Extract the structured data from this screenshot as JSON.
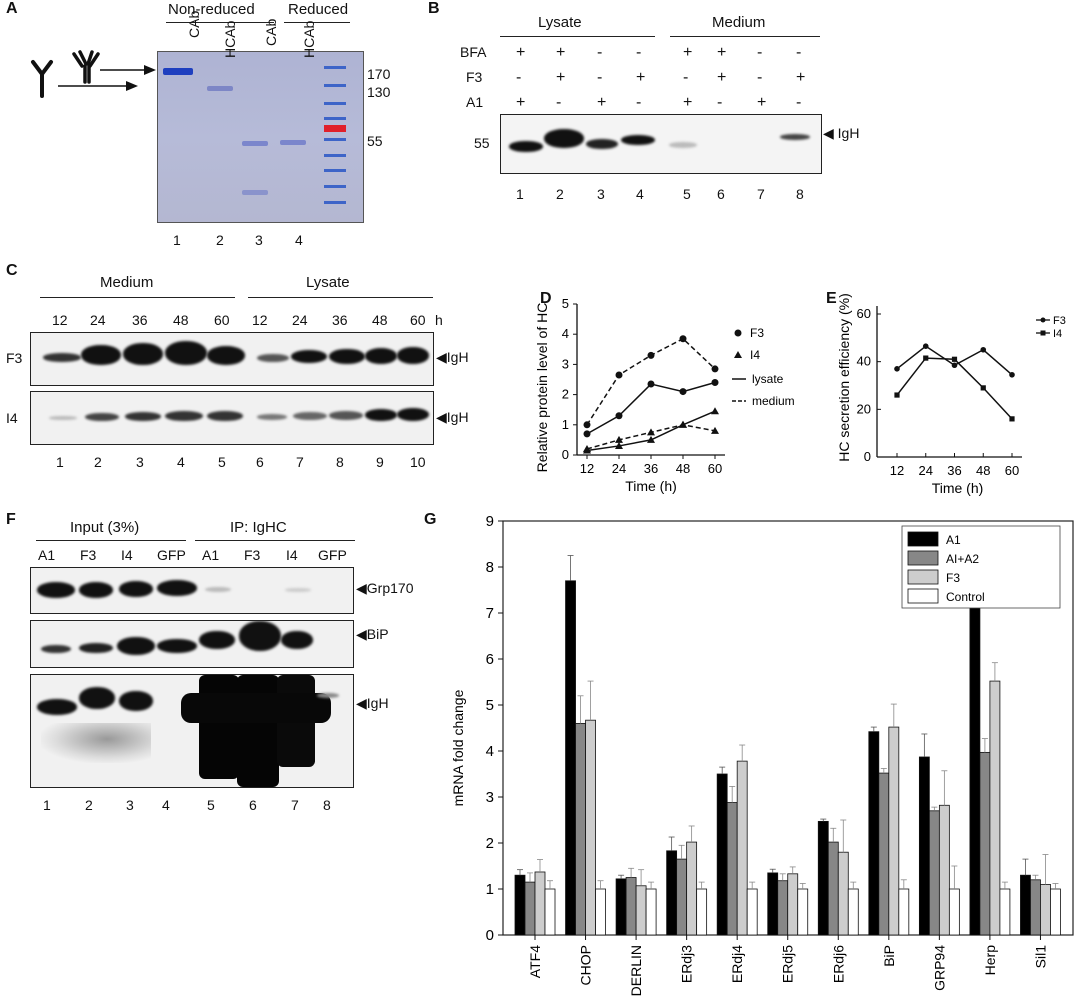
{
  "panels": {
    "A": {
      "label": "A",
      "headers": [
        "Non-reduced",
        "Reduced"
      ],
      "lanes": [
        "CAb",
        "HCAb",
        "CAb",
        "HCAb"
      ],
      "markers": [
        "170",
        "130",
        "55"
      ],
      "lane_numbers": [
        "1",
        "2",
        "3",
        "4"
      ]
    },
    "B": {
      "label": "B",
      "groups": [
        "Lysate",
        "Medium"
      ],
      "row_labels": [
        "BFA",
        "F3",
        "A1"
      ],
      "rows": {
        "BFA": [
          "+",
          "+",
          "-",
          "-",
          "+",
          "+",
          "-",
          "-"
        ],
        "F3": [
          "-",
          "+",
          "-",
          "+",
          "-",
          "+",
          "-",
          "+"
        ],
        "A1": [
          "+",
          "-",
          "+",
          "-",
          "+",
          "-",
          "+",
          "-"
        ]
      },
      "marker": "55",
      "band_label": "IgH",
      "lane_numbers": [
        "1",
        "2",
        "3",
        "4",
        "5",
        "6",
        "7",
        "8"
      ]
    },
    "C": {
      "label": "C",
      "groups": [
        "Medium",
        "Lysate"
      ],
      "timepoints": [
        "12",
        "24",
        "36",
        "48",
        "60",
        "12",
        "24",
        "36",
        "48",
        "60"
      ],
      "unit": "h",
      "rows": [
        "F3",
        "I4"
      ],
      "band_label": "IgH",
      "lane_numbers": [
        "1",
        "2",
        "3",
        "4",
        "5",
        "6",
        "7",
        "8",
        "9",
        "10"
      ]
    },
    "F": {
      "label": "F",
      "groups": [
        "Input (3%)",
        "IP: IgHC"
      ],
      "lanes": [
        "A1",
        "F3",
        "I4",
        "GFP",
        "A1",
        "F3",
        "I4",
        "GFP"
      ],
      "band_labels": [
        "Grp170",
        "BiP",
        "IgH"
      ],
      "lane_numbers": [
        "1",
        "2",
        "3",
        "4",
        "5",
        "6",
        "7",
        "8"
      ]
    }
  },
  "chart_data": [
    {
      "panel": "D",
      "type": "line",
      "ylabel": "Relative protein level of HC",
      "xlabel": "Time (h)",
      "x": [
        12,
        24,
        36,
        48,
        60
      ],
      "ylim": [
        0,
        5
      ],
      "yticks": [
        "0",
        "1",
        "2",
        "3",
        "4",
        "5"
      ],
      "xticks": [
        "12",
        "24",
        "36",
        "48",
        "60"
      ],
      "legend": [
        "F3",
        "I4",
        "lysate",
        "medium"
      ],
      "series": [
        {
          "name": "F3 lysate",
          "marker": "circle",
          "style": "solid",
          "values": [
            0.7,
            1.3,
            2.35,
            2.1,
            2.4
          ]
        },
        {
          "name": "F3 medium",
          "marker": "circle",
          "style": "dashed",
          "values": [
            1.0,
            2.65,
            3.3,
            3.85,
            2.85
          ]
        },
        {
          "name": "I4 lysate",
          "marker": "triangle",
          "style": "solid",
          "values": [
            0.15,
            0.3,
            0.5,
            1.0,
            1.45
          ]
        },
        {
          "name": "I4 medium",
          "marker": "triangle",
          "style": "dashed",
          "values": [
            0.2,
            0.5,
            0.75,
            1.0,
            0.8
          ]
        }
      ]
    },
    {
      "panel": "E",
      "type": "line",
      "ylabel": "HC secretion efficiency (%)",
      "xlabel": "Time (h)",
      "x": [
        12,
        24,
        36,
        48,
        60
      ],
      "ylim": [
        0,
        60
      ],
      "yticks": [
        "0",
        "20",
        "40",
        "60"
      ],
      "xticks": [
        "12",
        "24",
        "36",
        "48",
        "60"
      ],
      "legend": [
        "F3",
        "I4"
      ],
      "series": [
        {
          "name": "F3",
          "marker": "circle",
          "values": [
            37,
            46.5,
            38.5,
            45,
            34.5
          ]
        },
        {
          "name": "I4",
          "marker": "square",
          "values": [
            26,
            41.5,
            41,
            29,
            16
          ]
        }
      ]
    },
    {
      "panel": "G",
      "type": "bar",
      "ylabel": "mRNA fold change",
      "ylim": [
        0,
        9
      ],
      "yticks": [
        "0",
        "1",
        "2",
        "3",
        "4",
        "5",
        "6",
        "7",
        "8",
        "9"
      ],
      "categories": [
        "ATF4",
        "CHOP",
        "DERLIN",
        "ERdj3",
        "ERdj4",
        "ERdj5",
        "ERdj6",
        "BiP",
        "GRP94",
        "Herp",
        "Sil1"
      ],
      "legend": [
        "A1",
        "AI+A2",
        "F3",
        "Control"
      ],
      "series": [
        {
          "name": "A1",
          "color": "#000000",
          "values": [
            1.3,
            7.7,
            1.22,
            1.83,
            3.5,
            1.35,
            2.47,
            4.42,
            3.87,
            7.25,
            1.3
          ],
          "errors": [
            0.12,
            0.55,
            0.08,
            0.3,
            0.15,
            0.08,
            0.05,
            0.1,
            0.5,
            1.1,
            0.35
          ]
        },
        {
          "name": "AI+A2",
          "color": "#878787",
          "values": [
            1.15,
            4.6,
            1.25,
            1.65,
            2.88,
            1.18,
            2.02,
            3.52,
            2.7,
            3.97,
            1.2
          ],
          "errors": [
            0.2,
            0.6,
            0.2,
            0.3,
            0.35,
            0.15,
            0.3,
            0.1,
            0.08,
            0.3,
            0.1
          ]
        },
        {
          "name": "F3",
          "color": "#cdcdcd",
          "values": [
            1.37,
            4.67,
            1.07,
            2.02,
            3.78,
            1.33,
            1.8,
            4.52,
            2.82,
            5.52,
            1.1
          ],
          "errors": [
            0.27,
            0.85,
            0.35,
            0.35,
            0.35,
            0.15,
            0.7,
            0.5,
            0.75,
            0.4,
            0.65
          ]
        },
        {
          "name": "Control",
          "color": "#ffffff",
          "values": [
            1.0,
            1.0,
            1.0,
            1.0,
            1.0,
            1.0,
            1.0,
            1.0,
            1.0,
            1.0,
            1.0
          ],
          "errors": [
            0.18,
            0.18,
            0.15,
            0.15,
            0.15,
            0.12,
            0.15,
            0.2,
            0.5,
            0.15,
            0.12
          ]
        }
      ]
    }
  ]
}
